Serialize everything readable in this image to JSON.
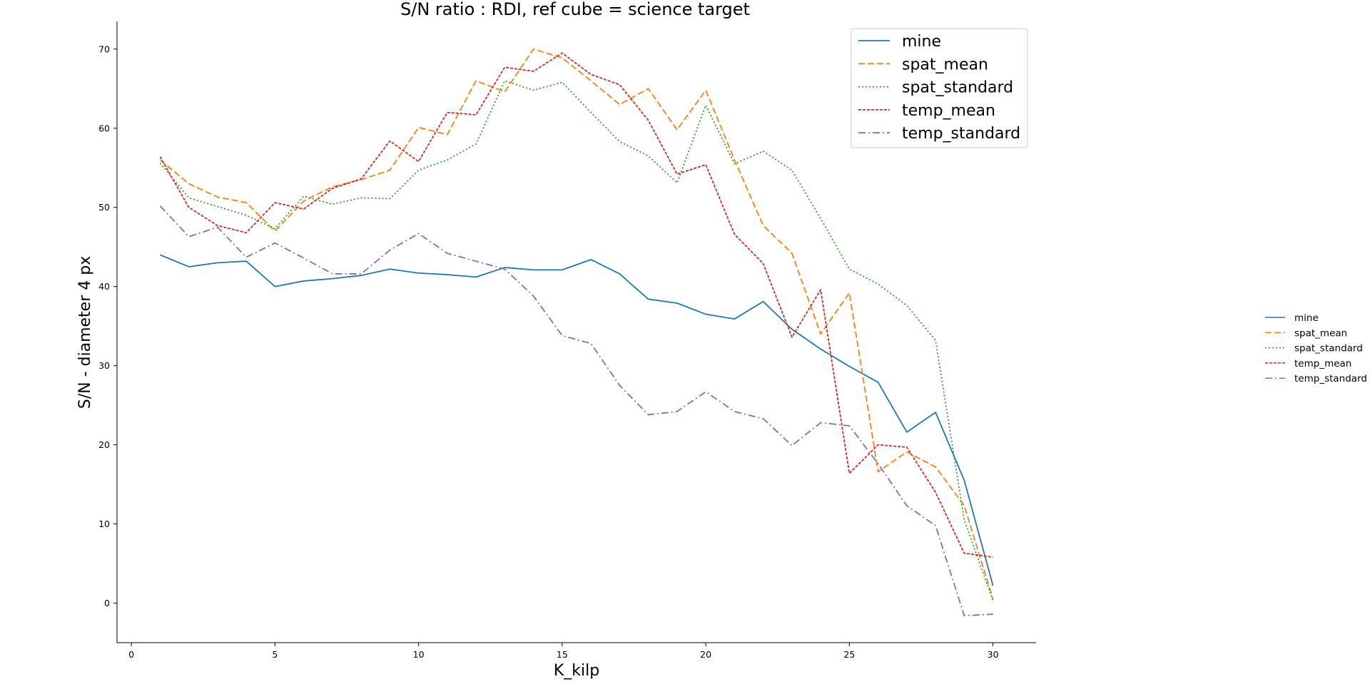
{
  "chart_data": {
    "type": "line",
    "title": "S/N ratio : RDI, ref cube = science target",
    "xlabel": "K_kilp",
    "ylabel": "S/N - diameter 4 px",
    "xlim": [
      -0.5,
      31.5
    ],
    "ylim": [
      -5,
      73.5
    ],
    "xticks": [
      0,
      5,
      10,
      15,
      20,
      25,
      30
    ],
    "yticks": [
      0,
      10,
      20,
      30,
      40,
      50,
      60,
      70
    ],
    "grid": false,
    "legend_placement": "top-right",
    "secondary_legend_placement": "outside-right",
    "x": [
      1,
      2,
      3,
      4,
      5,
      6,
      7,
      8,
      9,
      10,
      11,
      12,
      13,
      14,
      15,
      16,
      17,
      18,
      19,
      20,
      21,
      22,
      23,
      24,
      25,
      26,
      27,
      28,
      29,
      30
    ],
    "series": [
      {
        "name": "mine",
        "color": "#1f77b4",
        "dash": "solid",
        "values": [
          44.0,
          42.5,
          43.0,
          43.2,
          40.0,
          40.7,
          41.0,
          41.4,
          42.2,
          41.7,
          41.5,
          41.2,
          42.4,
          42.1,
          42.1,
          43.4,
          41.6,
          38.4,
          37.9,
          36.5,
          35.9,
          38.1,
          34.6,
          32.1,
          29.9,
          27.9,
          21.6,
          24.1,
          15.5,
          2.2
        ]
      },
      {
        "name": "spat_mean",
        "color": "#ff7f0e",
        "dash": "dashed",
        "values": [
          56.0,
          53.0,
          51.3,
          50.6,
          47.0,
          50.8,
          52.6,
          53.5,
          54.7,
          60.1,
          59.2,
          66.0,
          64.6,
          70.0,
          68.9,
          66.0,
          63.0,
          65.0,
          59.8,
          64.8,
          56.0,
          47.7,
          44.2,
          34.0,
          39.2,
          16.6,
          19.1,
          17.2,
          12.3,
          0.5
        ]
      },
      {
        "name": "spat_standard",
        "color": "#2ca02c",
        "dash": "dotted",
        "values": [
          55.6,
          51.2,
          50.1,
          49.0,
          47.3,
          51.4,
          50.4,
          51.2,
          51.1,
          54.7,
          56.0,
          58.0,
          66.0,
          64.8,
          65.8,
          62.0,
          58.3,
          56.5,
          53.1,
          62.9,
          55.5,
          57.1,
          54.7,
          48.6,
          42.2,
          40.3,
          37.6,
          33.2,
          10.5,
          0.3
        ]
      },
      {
        "name": "temp_mean",
        "color": "#d62728",
        "dash": "densely-dashed",
        "values": [
          56.4,
          50.0,
          47.7,
          46.8,
          50.6,
          49.8,
          52.4,
          53.6,
          58.4,
          55.8,
          62.0,
          61.7,
          67.7,
          67.2,
          69.5,
          66.8,
          65.5,
          61.0,
          54.2,
          55.4,
          46.6,
          42.9,
          33.6,
          39.6,
          16.4,
          20.0,
          19.7,
          14.0,
          6.3,
          5.8
        ]
      },
      {
        "name": "temp_standard",
        "color": "#9467bd",
        "dash": "dashdot",
        "values": [
          50.2,
          46.3,
          47.5,
          43.7,
          45.5,
          43.6,
          41.6,
          41.6,
          44.6,
          46.7,
          44.2,
          43.2,
          42.2,
          38.8,
          33.8,
          32.8,
          27.5,
          23.8,
          24.2,
          26.7,
          24.2,
          23.3,
          19.9,
          22.8,
          22.4,
          17.6,
          12.3,
          9.8,
          -1.6,
          -1.4
        ]
      }
    ]
  }
}
